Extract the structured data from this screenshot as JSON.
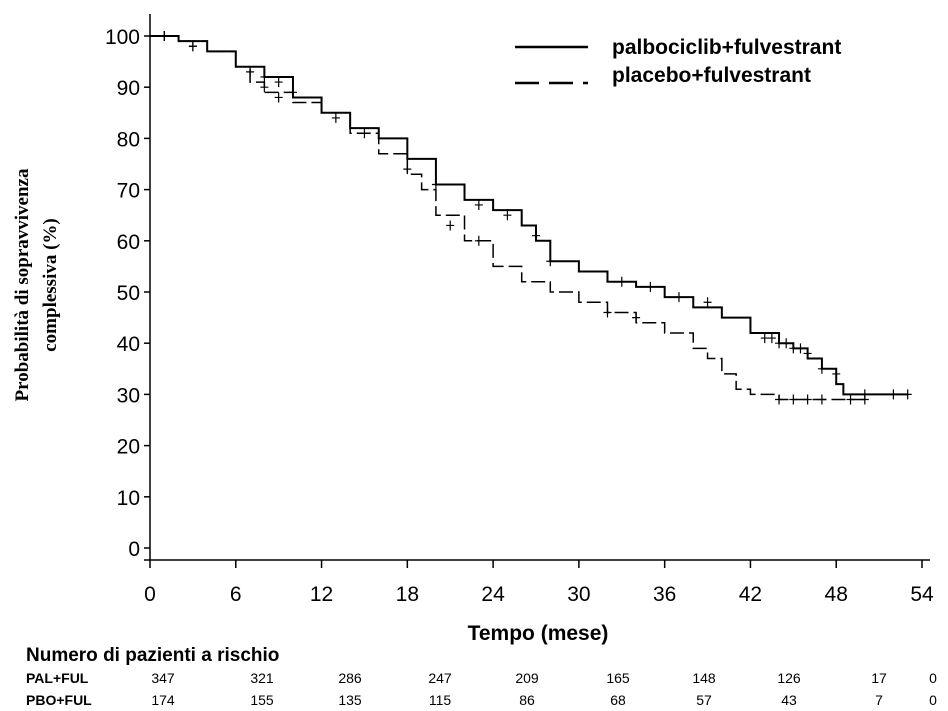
{
  "chart_data": {
    "type": "line",
    "xlabel": "Tempo (mese)",
    "ylabel_line1": "Probabilità di sopravvivenza",
    "ylabel_line2": "complessiva (%)",
    "xlim": [
      0,
      54
    ],
    "ylim": [
      0,
      100
    ],
    "x_ticks": [
      0,
      6,
      12,
      18,
      24,
      30,
      36,
      42,
      48,
      54
    ],
    "y_ticks": [
      0,
      10,
      20,
      30,
      40,
      50,
      60,
      70,
      80,
      90,
      100
    ],
    "legend_position": "top-right",
    "series": [
      {
        "name": "palbociclib+fulvestrant",
        "style": "solid",
        "x": [
          0,
          2,
          4,
          6,
          8,
          10,
          12,
          14,
          16,
          18,
          20,
          22,
          24,
          26,
          27,
          28,
          30,
          32,
          34,
          36,
          38,
          40,
          42,
          44,
          45,
          46,
          47,
          48,
          48.5,
          53
        ],
        "y": [
          100,
          99,
          97,
          94,
          92,
          88,
          85,
          82,
          80,
          76,
          71,
          68,
          66,
          63,
          60,
          56,
          54,
          52,
          51,
          49,
          47,
          45,
          42,
          40,
          39,
          37,
          35,
          32,
          30,
          30
        ],
        "censor_x": [
          1,
          3,
          7,
          8,
          9,
          10,
          13,
          15,
          20,
          23,
          25,
          27,
          28,
          33,
          35,
          37,
          39,
          43,
          43.5,
          44,
          44.5,
          45,
          45.5,
          46,
          47,
          48,
          50,
          52,
          53
        ],
        "censor_y": [
          100,
          98,
          93,
          92,
          91,
          89,
          84,
          81,
          71,
          67,
          65,
          61,
          56,
          52,
          51,
          49,
          48,
          41,
          41,
          40,
          40,
          39,
          39,
          38,
          35,
          34,
          30,
          30,
          30
        ]
      },
      {
        "name": "placebo+fulvestrant",
        "style": "dashed",
        "x": [
          0,
          2,
          4,
          6,
          7,
          8,
          10,
          12,
          14,
          16,
          18,
          19,
          20,
          22,
          24,
          26,
          28,
          30,
          32,
          34,
          36,
          38,
          39,
          40,
          41,
          42,
          44,
          46,
          48,
          50
        ],
        "y": [
          100,
          99,
          97,
          94,
          91,
          89,
          87,
          85,
          81,
          77,
          73,
          70,
          65,
          60,
          55,
          52,
          50,
          48,
          46,
          44,
          42,
          39,
          37,
          34,
          31,
          30,
          29,
          29,
          29,
          29
        ],
        "censor_x": [
          1,
          3,
          8,
          9,
          18,
          21,
          23,
          32,
          34,
          44,
          45,
          46,
          47,
          49,
          50
        ],
        "censor_y": [
          100,
          98,
          90,
          88,
          74,
          63,
          60,
          46,
          45,
          29,
          29,
          29,
          29,
          29,
          29
        ]
      }
    ],
    "risk_table": {
      "title": "Numero di pazienti a rischio",
      "rows": [
        {
          "label": "PAL+FUL",
          "values": [
            "347",
            "321",
            "286",
            "247",
            "209",
            "165",
            "148",
            "126",
            "17",
            "0"
          ]
        },
        {
          "label": "PBO+FUL",
          "values": [
            "174",
            "155",
            "135",
            "115",
            "86",
            "68",
            "57",
            "43",
            "7",
            "0"
          ]
        }
      ]
    }
  }
}
